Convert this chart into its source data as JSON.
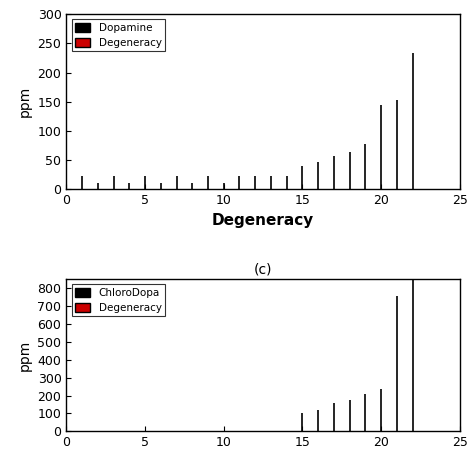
{
  "top_plot": {
    "xlabel": "Degeneracy",
    "ylabel": "ppm",
    "xlim": [
      0,
      25
    ],
    "ylim": [
      0,
      300
    ],
    "yticks": [
      0,
      50,
      100,
      150,
      200,
      250,
      300
    ],
    "xticks": [
      0,
      5,
      10,
      15,
      20,
      25
    ],
    "legend_labels": [
      "Dopamine",
      "Degeneracy"
    ],
    "legend_colors": [
      "#000000",
      "#cc0000"
    ],
    "bar_x": [
      1,
      2,
      3,
      4,
      5,
      6,
      7,
      8,
      9,
      10,
      11,
      12,
      13,
      14,
      15,
      16,
      17,
      18,
      19,
      20,
      21,
      22
    ],
    "bar_heights": [
      22,
      10,
      22,
      10,
      22,
      10,
      22,
      10,
      22,
      10,
      22,
      22,
      22,
      22,
      40,
      47,
      57,
      63,
      77,
      144,
      153,
      233
    ],
    "bar_color": "#000000",
    "bar_linewidth": 1.2
  },
  "bottom_plot": {
    "label": "(c)",
    "xlabel": "",
    "ylabel": "ppm",
    "xlim": [
      0,
      25
    ],
    "ylim": [
      0,
      850
    ],
    "yticks": [
      0,
      100,
      200,
      300,
      400,
      500,
      600,
      700,
      800
    ],
    "xticks": [
      0,
      5,
      10,
      15,
      20,
      25
    ],
    "legend_labels": [
      "ChloroDopa",
      "Degeneracy"
    ],
    "legend_colors": [
      "#000000",
      "#cc0000"
    ],
    "bar_x": [
      15,
      16,
      17,
      18,
      19,
      20,
      21,
      22
    ],
    "bar_heights": [
      100,
      120,
      160,
      175,
      210,
      235,
      755,
      850
    ],
    "bar_color": "#000000",
    "bar_linewidth": 1.2
  },
  "background_color": "#ffffff",
  "axis_color": "#000000",
  "fig_width": 4.74,
  "fig_height": 4.74,
  "dpi": 100,
  "top_height_ratio": 1.15,
  "bot_height_ratio": 1.0
}
